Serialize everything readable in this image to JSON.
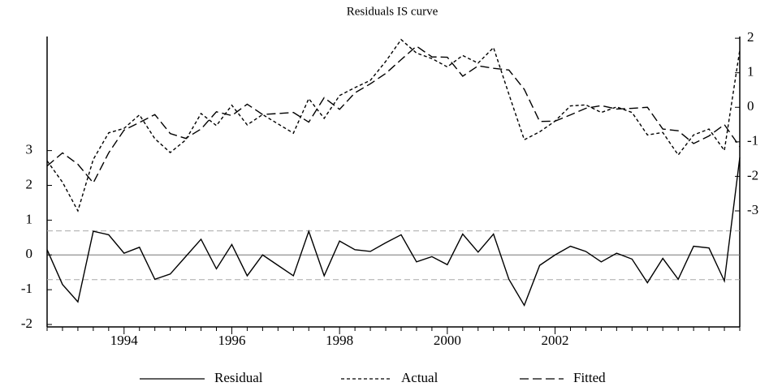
{
  "chart_data": {
    "type": "line",
    "title": "Residuals IS curve",
    "categories": [
      null,
      null,
      null,
      null,
      null,
      "1994",
      null,
      null,
      null,
      null,
      null,
      null,
      "1996",
      null,
      null,
      null,
      null,
      null,
      null,
      "1998",
      null,
      null,
      null,
      null,
      null,
      null,
      "2000",
      null,
      null,
      null,
      null,
      null,
      null,
      "2002",
      null,
      null,
      null,
      null,
      null,
      null,
      null,
      null,
      null,
      null,
      null,
      null
    ],
    "series": [
      {
        "name": "Residual",
        "color": "#000000",
        "axis": "y",
        "dash": "solid",
        "values": [
          0.15,
          -0.85,
          -1.35,
          0.68,
          0.58,
          0.05,
          0.22,
          -0.7,
          -0.55,
          -0.05,
          0.45,
          -0.4,
          0.3,
          -0.6,
          0.0,
          -0.3,
          -0.6,
          0.68,
          -0.6,
          0.4,
          0.15,
          0.1,
          0.35,
          0.58,
          -0.2,
          -0.05,
          -0.28,
          0.6,
          0.08,
          0.6,
          -0.7,
          -1.45,
          -0.3,
          0.0,
          0.25,
          0.1,
          -0.2,
          0.05,
          -0.12,
          -0.8,
          -0.1,
          -0.7,
          0.25,
          0.2,
          -0.75,
          2.8
        ]
      },
      {
        "name": "Actual",
        "color": "#000000",
        "axis": "y2",
        "dash": "short",
        "values": [
          -1.55,
          -2.17,
          -3.0,
          -1.51,
          -0.74,
          -0.61,
          -0.22,
          -0.91,
          -1.31,
          -0.95,
          -0.18,
          -0.53,
          0.06,
          -0.51,
          -0.21,
          -0.48,
          -0.75,
          0.25,
          -0.32,
          0.34,
          0.57,
          0.78,
          1.33,
          1.96,
          1.57,
          1.41,
          1.17,
          1.5,
          1.28,
          1.73,
          0.38,
          -0.94,
          -0.71,
          -0.4,
          0.04,
          0.07,
          -0.15,
          0.01,
          -0.15,
          -0.8,
          -0.73,
          -1.38,
          -0.8,
          -0.63,
          -1.25,
          1.66
        ]
      },
      {
        "name": "Fitted",
        "color": "#000000",
        "axis": "y2",
        "dash": "long",
        "values": [
          -1.7,
          -1.32,
          -1.65,
          -2.19,
          -1.32,
          -0.66,
          -0.44,
          -0.21,
          -0.76,
          -0.9,
          -0.63,
          -0.13,
          -0.24,
          0.09,
          -0.21,
          -0.18,
          -0.15,
          -0.43,
          0.28,
          -0.06,
          0.42,
          0.68,
          0.98,
          1.38,
          1.77,
          1.46,
          1.45,
          0.9,
          1.2,
          1.13,
          1.08,
          0.52,
          -0.41,
          -0.4,
          -0.22,
          -0.03,
          0.05,
          -0.05,
          -0.03,
          0.0,
          -0.63,
          -0.68,
          -1.05,
          -0.83,
          -0.5,
          -1.14
        ]
      }
    ],
    "ylim": [
      -2.07,
      6.28
    ],
    "yticks": [
      -2,
      -1,
      0,
      1,
      2,
      3
    ],
    "y2lim": [
      -6.36,
      2.05
    ],
    "y2ticks": [
      -3,
      -2,
      -1,
      0,
      1,
      2
    ],
    "hlines": [
      {
        "value": 0,
        "style": "solid"
      },
      {
        "value": 0.69,
        "style": "dashed"
      },
      {
        "value": -0.71,
        "style": "dashed"
      }
    ],
    "legend": "bottom"
  }
}
